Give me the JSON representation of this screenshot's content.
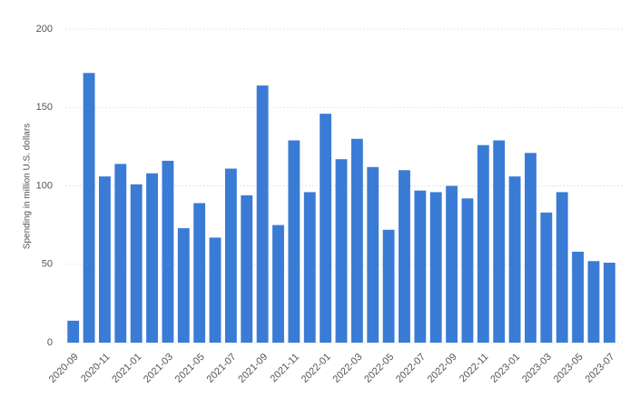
{
  "chart_data": {
    "type": "bar",
    "y_label": "Spending in million U.S. dollars",
    "categories": [
      "2020-09",
      null,
      "2020-11",
      null,
      "2021-01",
      null,
      "2021-03",
      null,
      "2021-05",
      null,
      "2021-07",
      null,
      "2021-09",
      null,
      "2021-11",
      null,
      "2022-01",
      null,
      "2022-03",
      null,
      "2022-05",
      null,
      "2022-07",
      null,
      "2022-09",
      null,
      "2022-11",
      null,
      "2023-01",
      null,
      "2023-03",
      null,
      "2023-05",
      null,
      "2023-07"
    ],
    "values": [
      14,
      172,
      106,
      114,
      101,
      108,
      116,
      73,
      89,
      67,
      111,
      94,
      164,
      75,
      129,
      96,
      146,
      117,
      130,
      112,
      72,
      110,
      97,
      96,
      100,
      92,
      126,
      129,
      106,
      121,
      83,
      96,
      58,
      52,
      51
    ],
    "color": "#3a7bd5",
    "ylim": [
      0,
      200
    ],
    "yticks": [
      0,
      50,
      100,
      150,
      200
    ],
    "grid": true
  }
}
